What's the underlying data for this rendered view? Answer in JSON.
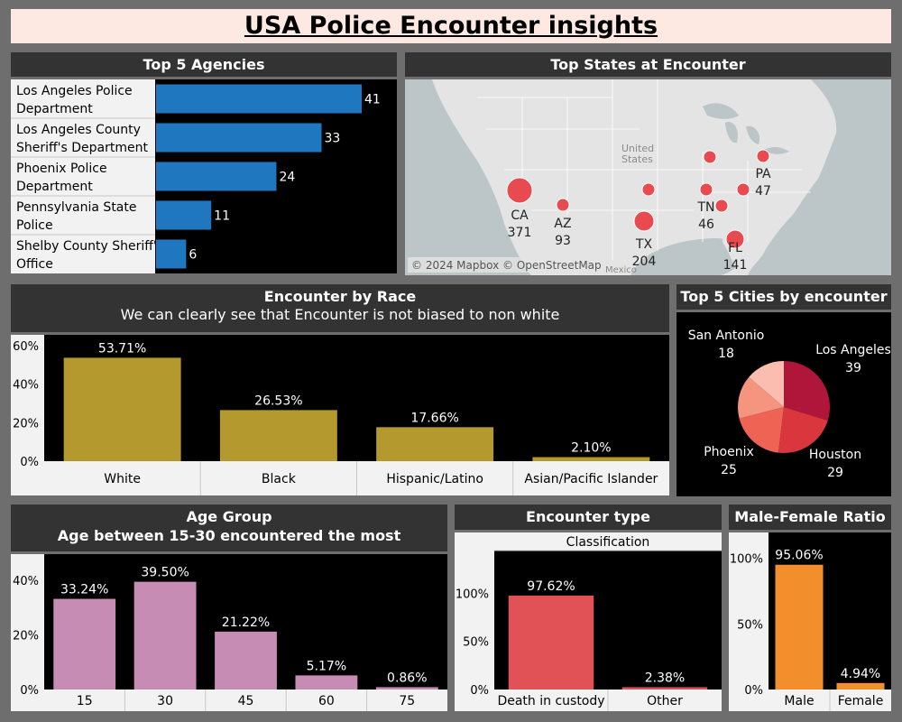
{
  "title": "USA Police Encounter insights",
  "colors": {
    "agencies": "#1f77c0",
    "race": "#b49a2e",
    "age": "#c68cb3",
    "type": "#e05256",
    "gender": "#f28e2b",
    "map_dot": "#e84a4f"
  },
  "agencies": {
    "title": "Top 5 Agencies",
    "chart_data": {
      "type": "bar",
      "orientation": "horizontal",
      "categories": [
        [
          "Los Angeles Police",
          "Department"
        ],
        [
          "Los Angeles County",
          "Sheriff's Department"
        ],
        [
          "Phoenix Police",
          "Department"
        ],
        [
          "Pennsylvania State",
          "Police"
        ],
        [
          "Shelby County Sheriff's",
          "Office"
        ]
      ],
      "values": [
        41,
        33,
        24,
        11,
        6
      ],
      "xlim": [
        0,
        50
      ]
    }
  },
  "states": {
    "title": "Top States at Encounter",
    "map_label_country": "United States",
    "map_label_mexico": "Mexico",
    "attribution": "© 2024 Mapbox © OpenStreetMap",
    "labeled": [
      {
        "state": "CA",
        "value": "371"
      },
      {
        "state": "AZ",
        "value": "93"
      },
      {
        "state": "TX",
        "value": "204"
      },
      {
        "state": "TN",
        "value": "46"
      },
      {
        "state": "FL",
        "value": "141"
      },
      {
        "state": "PA",
        "value": "47"
      }
    ]
  },
  "race": {
    "title": "Encounter by Race",
    "subtitle": "We can clearly see that Encounter is not biased to non white",
    "chart_data": {
      "type": "bar",
      "categories": [
        "White",
        "Black",
        "Hispanic/Latino",
        "Asian/Pacific Islander"
      ],
      "values": [
        53.71,
        26.53,
        17.66,
        2.1
      ],
      "labels": [
        "53.71%",
        "26.53%",
        "17.66%",
        "2.10%"
      ],
      "yticks": [
        "60%",
        "40%",
        "20%",
        "0%"
      ],
      "ylim": [
        0,
        60
      ]
    }
  },
  "cities": {
    "title": "Top 5 Cities by encounter",
    "chart_data": {
      "type": "pie",
      "slices": [
        {
          "name": "Los Angeles",
          "value": 39,
          "label": "39",
          "color": "#b0163a"
        },
        {
          "name": "Houston",
          "value": 29,
          "label": "29",
          "color": "#d9363e"
        },
        {
          "name": "Phoenix",
          "value": 25,
          "label": "25",
          "color": "#ee6353"
        },
        {
          "name": "",
          "value": 20,
          "label": "",
          "color": "#f6957f"
        },
        {
          "name": "San Antonio",
          "value": 18,
          "label": "18",
          "color": "#fbbdb0"
        }
      ]
    }
  },
  "age": {
    "title": "Age Group",
    "subtitle": "Age between 15-30 encountered the most",
    "chart_data": {
      "type": "bar",
      "categories": [
        "15",
        "30",
        "45",
        "60",
        "75"
      ],
      "values": [
        33.24,
        39.5,
        21.22,
        5.17,
        0.86
      ],
      "labels": [
        "33.24%",
        "39.50%",
        "21.22%",
        "5.17%",
        "0.86%"
      ],
      "yticks": [
        "40%",
        "20%",
        "0%"
      ],
      "ylim": [
        0,
        45
      ]
    }
  },
  "type": {
    "title": "Encounter type",
    "header": "Classification",
    "chart_data": {
      "type": "bar",
      "categories": [
        "Death in custody",
        "Other"
      ],
      "values": [
        97.62,
        2.38
      ],
      "labels": [
        "97.62%",
        "2.38%"
      ],
      "yticks": [
        "100%",
        "50%",
        "0%"
      ],
      "ylim": [
        0,
        120
      ]
    }
  },
  "gender": {
    "title": "Male-Female Ratio",
    "chart_data": {
      "type": "bar",
      "categories": [
        "Male",
        "Female"
      ],
      "values": [
        95.06,
        4.94
      ],
      "labels": [
        "95.06%",
        "4.94%"
      ],
      "yticks": [
        "100%",
        "50%",
        "0%"
      ],
      "ylim": [
        0,
        110
      ]
    }
  }
}
